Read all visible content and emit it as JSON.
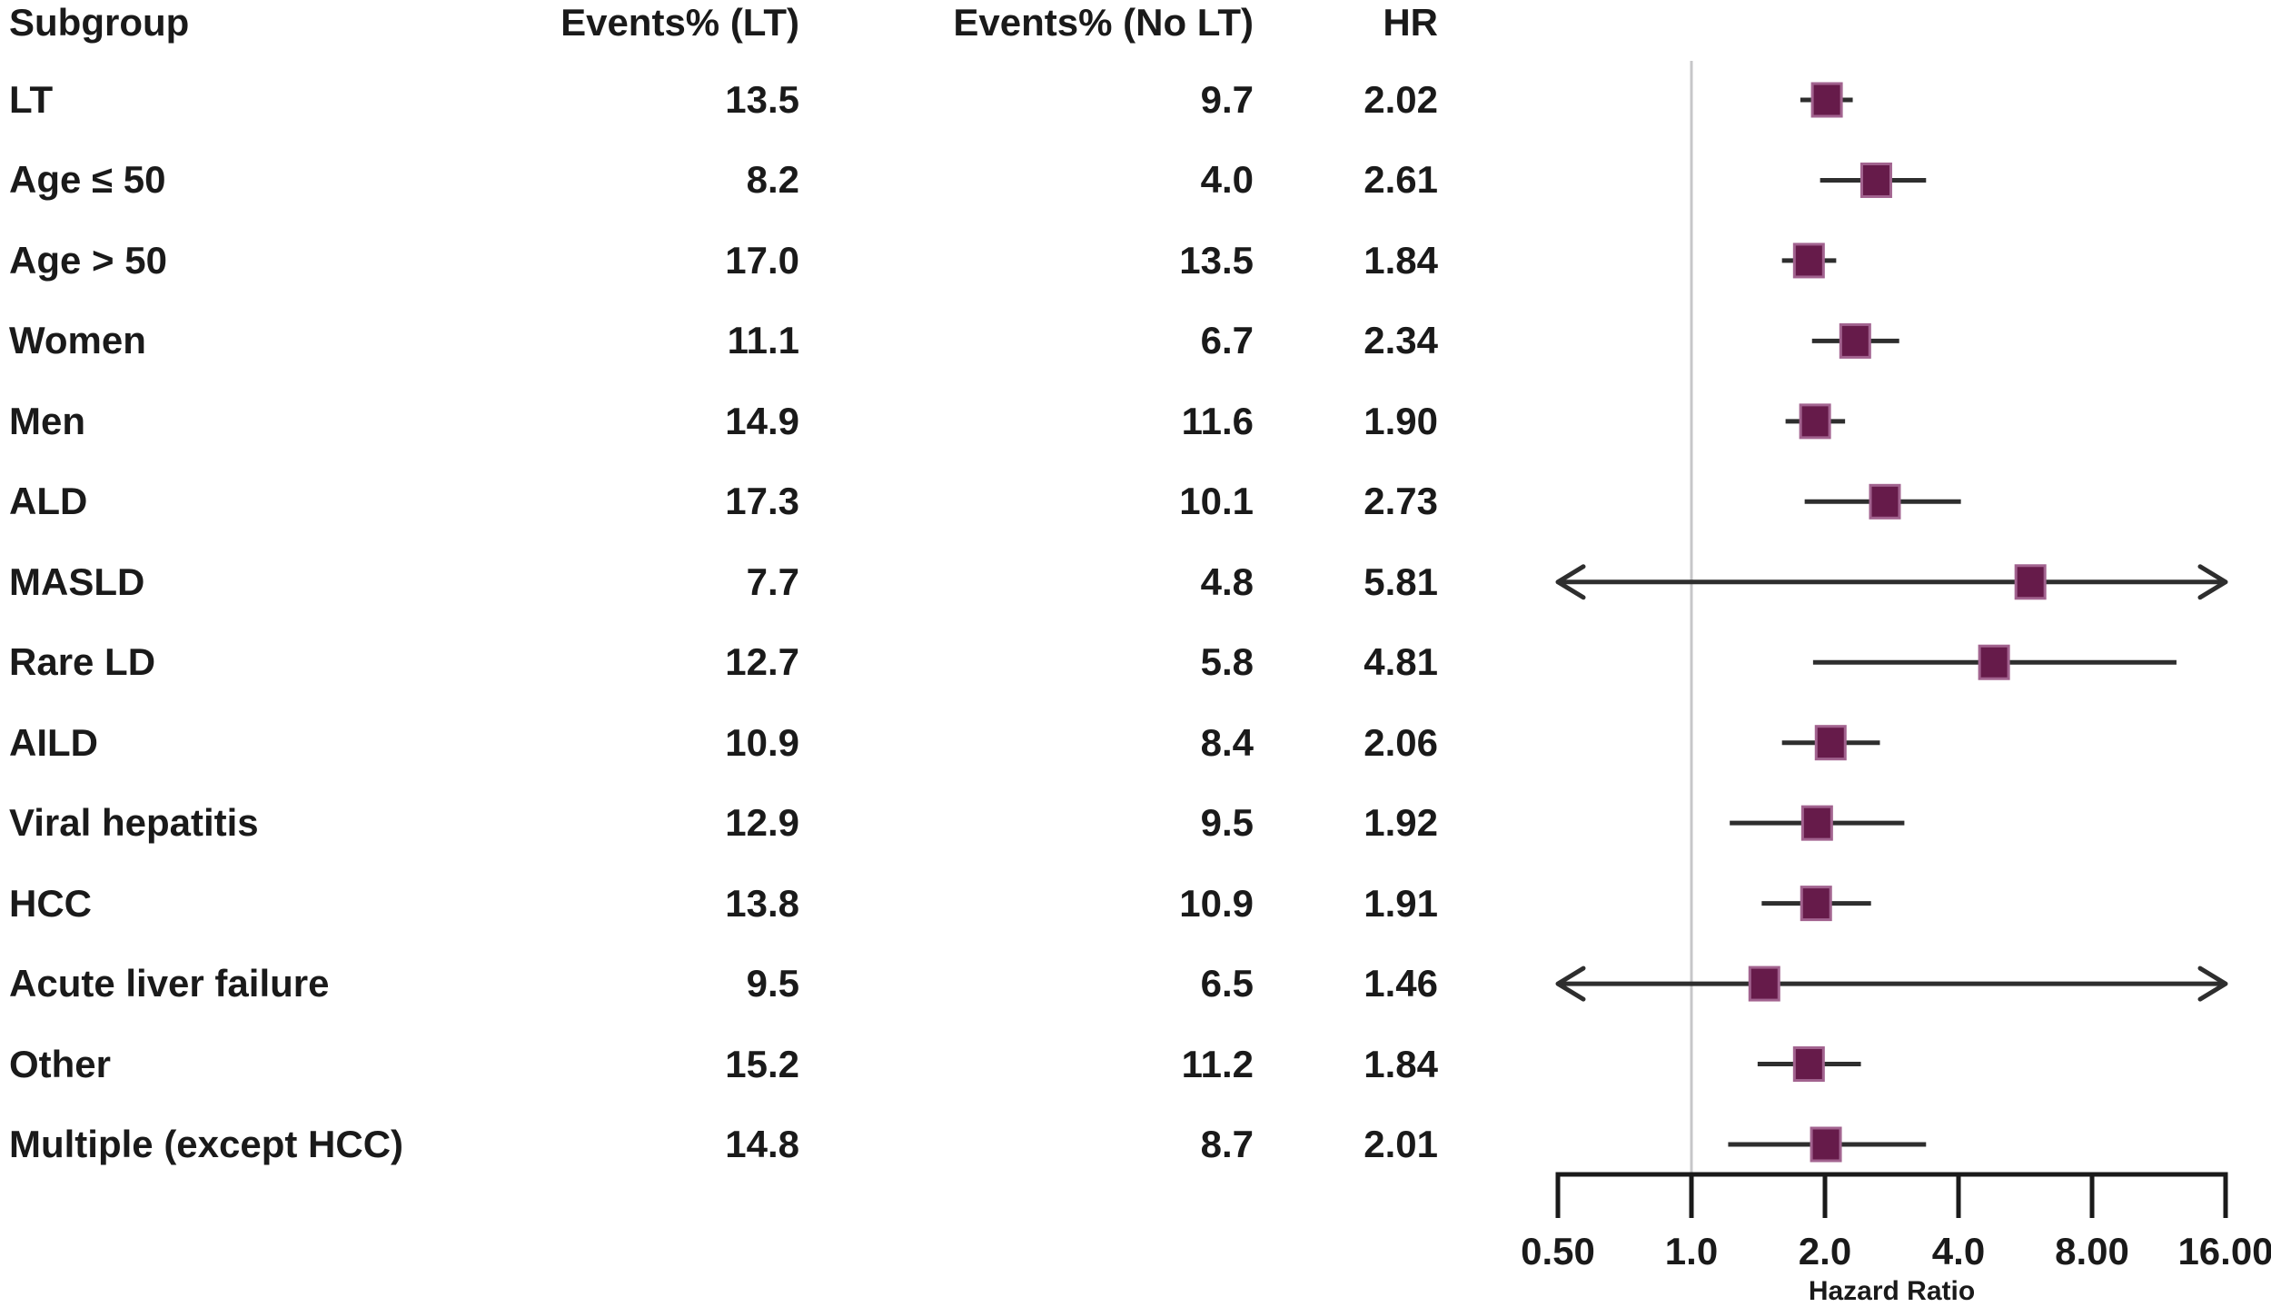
{
  "page": {
    "background": "#ffffff",
    "text_color": "#1a1a1a"
  },
  "table": {
    "headers": [
      "Subgroup",
      "Events% (LT)",
      "Events% (No LT)",
      "HR"
    ]
  },
  "chart_data": {
    "type": "scatter",
    "variant": "forest-plot",
    "title": "",
    "xlabel": "Hazard Ratio",
    "ylabel": "",
    "x_scale": "log2",
    "x_range": [
      0.5,
      16
    ],
    "reference_line_x": 1.0,
    "tick_values": [
      0.5,
      1,
      2,
      4,
      8,
      16
    ],
    "tick_labels": [
      "0.50",
      "1.0",
      "2.0",
      "4.0",
      "8.00",
      "16.00"
    ],
    "legend": "none",
    "grid": "off",
    "rows": [
      {
        "subgroup": "LT",
        "events_pct_lt": "13.5",
        "events_pct_no_lt": "9.7",
        "hr_label": "2.02",
        "hr": 2.02,
        "ci_low": 1.76,
        "ci_high": 2.31,
        "arrow_low": false,
        "arrow_high": false
      },
      {
        "subgroup": "Age ≤ 50",
        "events_pct_lt": "8.2",
        "events_pct_no_lt": "4.0",
        "hr_label": "2.61",
        "hr": 2.61,
        "ci_low": 1.95,
        "ci_high": 3.38,
        "arrow_low": false,
        "arrow_high": false
      },
      {
        "subgroup": "Age > 50",
        "events_pct_lt": "17.0",
        "events_pct_no_lt": "13.5",
        "hr_label": "1.84",
        "hr": 1.84,
        "ci_low": 1.6,
        "ci_high": 2.12,
        "arrow_low": false,
        "arrow_high": false
      },
      {
        "subgroup": "Women",
        "events_pct_lt": "11.1",
        "events_pct_no_lt": "6.7",
        "hr_label": "2.34",
        "hr": 2.34,
        "ci_low": 1.87,
        "ci_high": 2.94,
        "arrow_low": false,
        "arrow_high": false
      },
      {
        "subgroup": "Men",
        "events_pct_lt": "14.9",
        "events_pct_no_lt": "11.6",
        "hr_label": "1.90",
        "hr": 1.9,
        "ci_low": 1.63,
        "ci_high": 2.22,
        "arrow_low": false,
        "arrow_high": false
      },
      {
        "subgroup": "ALD",
        "events_pct_lt": "17.3",
        "events_pct_no_lt": "10.1",
        "hr_label": "2.73",
        "hr": 2.73,
        "ci_low": 1.8,
        "ci_high": 4.05,
        "arrow_low": false,
        "arrow_high": false
      },
      {
        "subgroup": "MASLD",
        "events_pct_lt": "7.7",
        "events_pct_no_lt": "4.8",
        "hr_label": "5.81",
        "hr": 5.81,
        "ci_low": 0.5,
        "ci_high": 16.0,
        "arrow_low": true,
        "arrow_high": true
      },
      {
        "subgroup": "Rare LD",
        "events_pct_lt": "12.7",
        "events_pct_no_lt": "5.8",
        "hr_label": "4.81",
        "hr": 4.81,
        "ci_low": 1.88,
        "ci_high": 12.4,
        "arrow_low": false,
        "arrow_high": false
      },
      {
        "subgroup": "AILD",
        "events_pct_lt": "10.9",
        "events_pct_no_lt": "8.4",
        "hr_label": "2.06",
        "hr": 2.06,
        "ci_low": 1.6,
        "ci_high": 2.66,
        "arrow_low": false,
        "arrow_high": false
      },
      {
        "subgroup": "Viral hepatitis",
        "events_pct_lt": "12.9",
        "events_pct_no_lt": "9.5",
        "hr_label": "1.92",
        "hr": 1.92,
        "ci_low": 1.22,
        "ci_high": 3.02,
        "arrow_low": false,
        "arrow_high": false
      },
      {
        "subgroup": "HCC",
        "events_pct_lt": "13.8",
        "events_pct_no_lt": "10.9",
        "hr_label": "1.91",
        "hr": 1.91,
        "ci_low": 1.44,
        "ci_high": 2.54,
        "arrow_low": false,
        "arrow_high": false
      },
      {
        "subgroup": "Acute liver failure",
        "events_pct_lt": "9.5",
        "events_pct_no_lt": "6.5",
        "hr_label": "1.46",
        "hr": 1.46,
        "ci_low": 0.5,
        "ci_high": 16.0,
        "arrow_low": true,
        "arrow_high": true
      },
      {
        "subgroup": "Other",
        "events_pct_lt": "15.2",
        "events_pct_no_lt": "11.2",
        "hr_label": "1.84",
        "hr": 1.84,
        "ci_low": 1.41,
        "ci_high": 2.41,
        "arrow_low": false,
        "arrow_high": false
      },
      {
        "subgroup": "Multiple (except HCC)",
        "events_pct_lt": "14.8",
        "events_pct_no_lt": "8.7",
        "hr_label": "2.01",
        "hr": 2.01,
        "ci_low": 1.21,
        "ci_high": 3.38,
        "arrow_low": false,
        "arrow_high": false
      }
    ],
    "colors": {
      "marker_fill": "#661b4a",
      "marker_border": "#a2638f",
      "ci_line": "#2e2e2e",
      "reference_line": "#c7c7c9",
      "axis": "#1a1a1a"
    }
  }
}
